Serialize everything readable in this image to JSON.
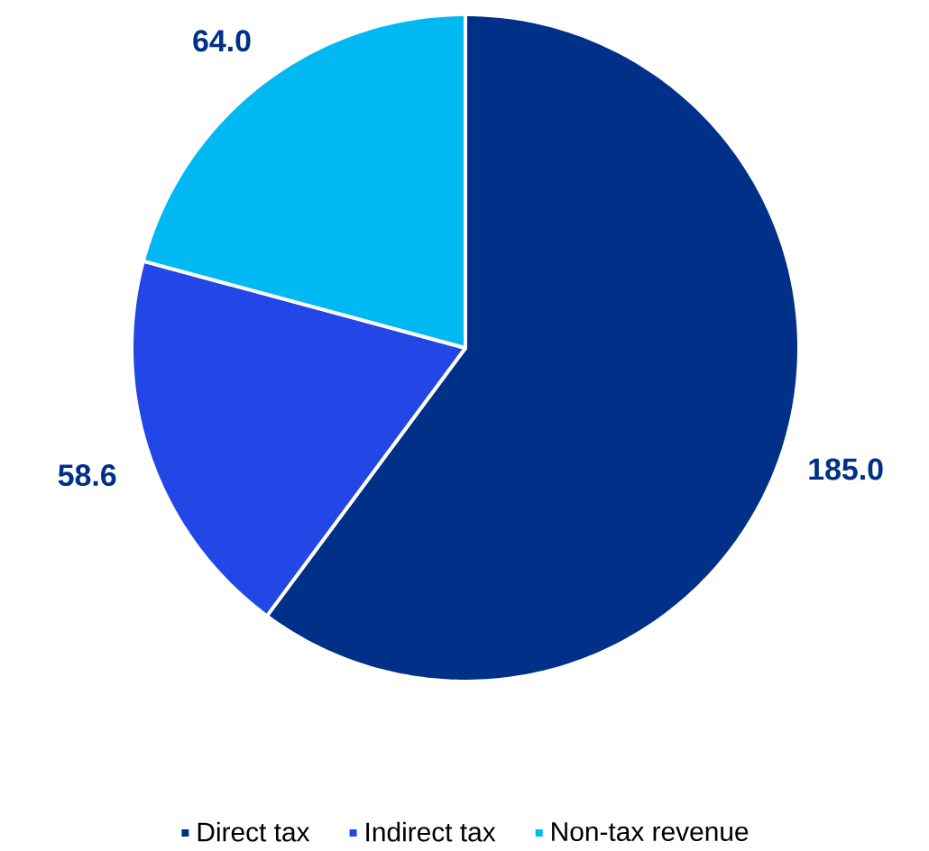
{
  "chart_data": {
    "type": "pie",
    "categories": [
      "Direct tax",
      "Indirect tax",
      "Non-tax revenue"
    ],
    "values": [
      185.0,
      58.6,
      64.0
    ],
    "colors": [
      "#003087",
      "#2346e6",
      "#00b9f2"
    ],
    "value_labels": [
      "185.0",
      "58.6",
      "64.0"
    ],
    "legend": "bottom"
  }
}
